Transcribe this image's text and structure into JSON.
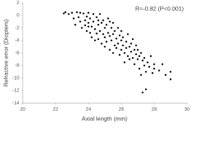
{
  "chart_data": {
    "type": "scatter",
    "annotation": "R=-0.82 (P<0.001)",
    "x_label": "Axial length (mm)",
    "y_label": "Refractive error (Diopters)",
    "color": "#000000",
    "grid": false,
    "xlim": [
      20,
      30
    ],
    "xticks": [
      20,
      22,
      24,
      26,
      28,
      30
    ],
    "ylim": [
      -14,
      2
    ],
    "yticks": [
      -14,
      -12,
      -10,
      -8,
      -6,
      -4,
      -2,
      0,
      2
    ],
    "x": [
      22.5,
      22.6,
      22.8,
      23.0,
      23.1,
      23.2,
      23.3,
      23.4,
      23.5,
      23.5,
      23.6,
      23.7,
      23.8,
      23.8,
      23.9,
      24.0,
      24.0,
      24.1,
      24.1,
      24.2,
      24.2,
      24.3,
      24.3,
      24.4,
      24.4,
      24.5,
      24.5,
      24.6,
      24.6,
      24.7,
      24.7,
      24.8,
      24.8,
      24.9,
      24.9,
      25.0,
      25.0,
      25.0,
      25.1,
      25.1,
      25.2,
      25.2,
      25.3,
      25.3,
      25.4,
      25.4,
      25.5,
      25.5,
      25.5,
      25.6,
      25.6,
      25.7,
      25.7,
      25.8,
      25.8,
      25.9,
      25.9,
      26.0,
      26.0,
      26.0,
      26.1,
      26.1,
      26.2,
      26.2,
      26.3,
      26.3,
      26.4,
      26.4,
      26.5,
      26.5,
      26.6,
      26.6,
      26.7,
      26.7,
      26.8,
      26.8,
      26.9,
      26.9,
      27.0,
      27.0,
      27.1,
      27.1,
      27.2,
      27.2,
      27.3,
      27.3,
      27.4,
      27.4,
      27.5,
      27.5,
      27.6,
      27.7,
      27.8,
      27.9,
      28.0,
      28.0,
      28.3,
      28.5,
      28.7,
      29.0,
      29.0,
      24.0,
      23.9,
      24.6,
      25.3
    ],
    "y": [
      0.3,
      0.5,
      0.2,
      0.4,
      -0.5,
      -1.5,
      0.5,
      -0.3,
      -1.0,
      0.4,
      -2.0,
      0.3,
      -0.8,
      -1.6,
      -2.5,
      0.4,
      -1.2,
      -0.5,
      -2.8,
      -1.8,
      -3.5,
      0.2,
      -1.0,
      -2.2,
      -4.0,
      -0.3,
      -2.9,
      -1.5,
      -3.8,
      0.2,
      -2.5,
      -1.2,
      -4.5,
      -3.0,
      -0.8,
      -2.0,
      -5.0,
      -3.5,
      -1.5,
      -4.2,
      -2.8,
      -0.5,
      -3.3,
      -5.5,
      -2.0,
      -4.0,
      -3.0,
      -6.0,
      -1.2,
      -4.8,
      -2.5,
      -3.7,
      -5.2,
      -2.0,
      -4.5,
      -3.2,
      -6.3,
      -4.0,
      -5.5,
      -2.5,
      -4.8,
      -3.5,
      -6.0,
      -7.5,
      -4.2,
      -5.2,
      -3.0,
      -6.5,
      -5.0,
      -7.0,
      -4.5,
      -5.8,
      -6.8,
      -3.8,
      -5.5,
      -7.8,
      -6.2,
      -4.8,
      -7.0,
      -5.5,
      -8.5,
      -6.5,
      -6.0,
      -9.5,
      -7.2,
      -12.3,
      -8.0,
      -6.8,
      -9.0,
      -11.8,
      -7.5,
      -8.2,
      -6.5,
      -9.2,
      -7.8,
      -8.5,
      -8.8,
      -7.8,
      -9.5,
      -10.2,
      -9.0,
      -1.8,
      -0.2,
      -0.8,
      -1.0
    ]
  }
}
